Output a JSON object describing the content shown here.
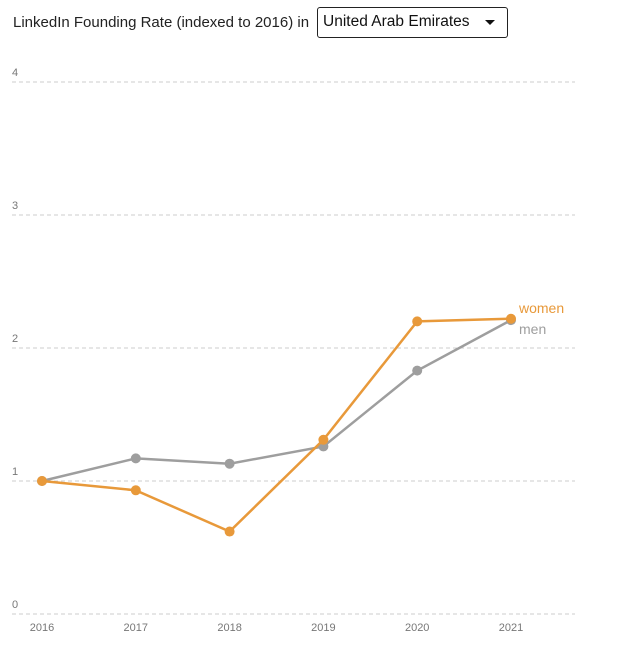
{
  "header": {
    "title": "LinkedIn Founding Rate (indexed to 2016) in",
    "selected_country": "United Arab Emirates"
  },
  "chart_data": {
    "type": "line",
    "categories": [
      "2016",
      "2017",
      "2018",
      "2019",
      "2020",
      "2021"
    ],
    "ylim": [
      0,
      4
    ],
    "yticks": [
      "0",
      "1",
      "2",
      "3",
      "4"
    ],
    "grid": true,
    "legend": "inline-right",
    "series": [
      {
        "name": "women",
        "color": "#E8993A",
        "values": [
          1.0,
          0.93,
          0.62,
          1.31,
          2.2,
          2.22
        ]
      },
      {
        "name": "men",
        "color": "#9E9E9E",
        "values": [
          1.0,
          1.17,
          1.13,
          1.26,
          1.83,
          2.21
        ]
      }
    ]
  }
}
